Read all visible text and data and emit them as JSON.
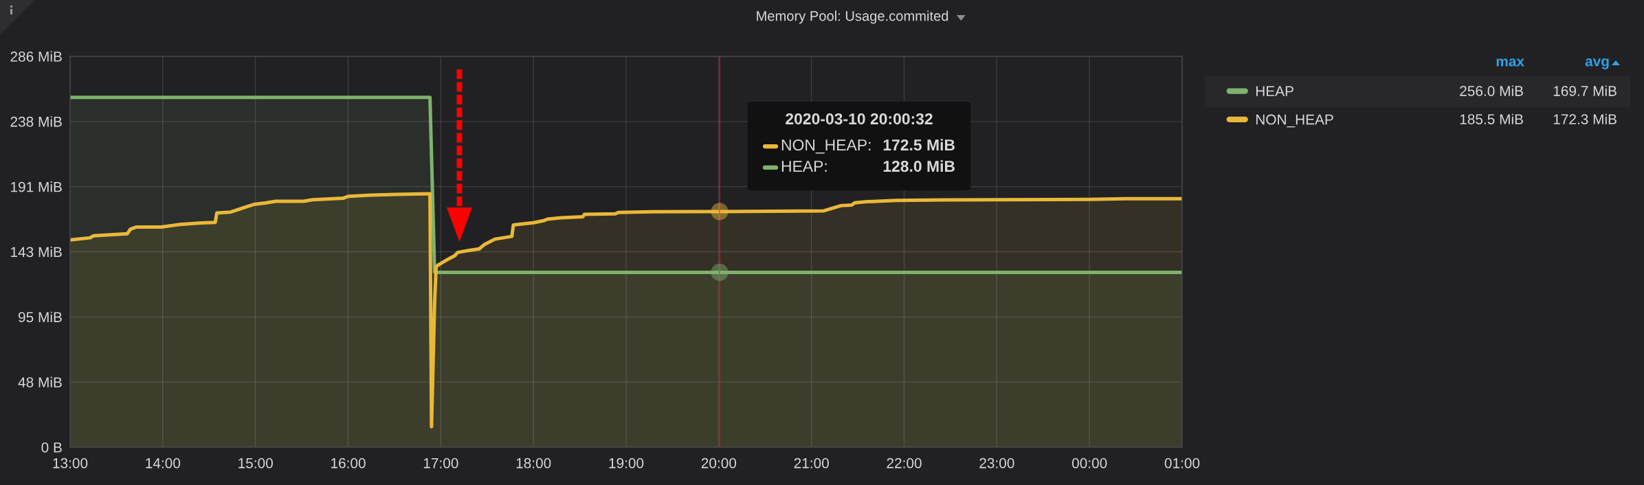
{
  "chart_data": {
    "type": "area",
    "title": "Memory Pool: Usage.commited",
    "series": [
      {
        "name": "HEAP",
        "color": "#7eb26d",
        "x": [
          "2020-03-10T13:00",
          "2020-03-10T16:53",
          "2020-03-10T16:56",
          "2020-03-10T20:00:32",
          "2020-03-11T01:00"
        ],
        "values": [
          256.0,
          256.0,
          128.0,
          128.0,
          128.0
        ]
      },
      {
        "name": "NON_HEAP",
        "color": "#eab839",
        "x": [
          "2020-03-10T13:00",
          "2020-03-10T13:13",
          "2020-03-10T13:15",
          "2020-03-10T13:37",
          "2020-03-10T13:39",
          "2020-03-10T13:43",
          "2020-03-10T13:59",
          "2020-03-10T14:11",
          "2020-03-10T14:25",
          "2020-03-10T14:34",
          "2020-03-10T14:35",
          "2020-03-10T14:44",
          "2020-03-10T14:54",
          "2020-03-10T14:59",
          "2020-03-10T15:07",
          "2020-03-10T15:13",
          "2020-03-10T15:31",
          "2020-03-10T15:37",
          "2020-03-10T15:57",
          "2020-03-10T16:00",
          "2020-03-10T16:15",
          "2020-03-10T16:31",
          "2020-03-10T16:53",
          "2020-03-10T16:54",
          "2020-03-10T16:56",
          "2020-03-10T16:57",
          "2020-03-10T16:59",
          "2020-03-10T17:05",
          "2020-03-10T17:09",
          "2020-03-10T17:11",
          "2020-03-10T17:17",
          "2020-03-10T17:25",
          "2020-03-10T17:28",
          "2020-03-10T17:35",
          "2020-03-10T17:46",
          "2020-03-10T17:47",
          "2020-03-10T18:00",
          "2020-03-10T18:07",
          "2020-03-10T18:09",
          "2020-03-10T18:18",
          "2020-03-10T18:32",
          "2020-03-10T18:33",
          "2020-03-10T18:53",
          "2020-03-10T18:55",
          "2020-03-10T19:17",
          "2020-03-10T20:00:32",
          "2020-03-10T21:08",
          "2020-03-10T21:19",
          "2020-03-10T21:26",
          "2020-03-10T21:28",
          "2020-03-10T21:36",
          "2020-03-10T21:55",
          "2020-03-10T22:26",
          "2020-03-11T00:00",
          "2020-03-11T00:23",
          "2020-03-11T01:00"
        ],
        "values": [
          151.7,
          153.3,
          154.7,
          156.2,
          159.6,
          161.2,
          161.2,
          163.0,
          164.2,
          164.6,
          171.5,
          172.1,
          175.9,
          177.7,
          178.9,
          180.0,
          180.0,
          181.1,
          182.3,
          183.6,
          184.5,
          185.0,
          185.5,
          15,
          106,
          132.2,
          133.8,
          137.8,
          140.2,
          142.6,
          143.8,
          145.2,
          148.2,
          152.3,
          154.3,
          162.7,
          164.3,
          165.9,
          166.9,
          167.9,
          168.7,
          170.4,
          170.8,
          171.8,
          172.4,
          172.5,
          173.0,
          176.8,
          177.2,
          178.9,
          179.7,
          180.6,
          181.0,
          181.4,
          181.9,
          181.9
        ]
      }
    ],
    "xlim": [
      "2020-03-10T13:00",
      "2020-03-11T01:00"
    ],
    "xticks": [
      {
        "value": "2020-03-10T13:00",
        "label": "13:00"
      },
      {
        "value": "2020-03-10T14:00",
        "label": "14:00"
      },
      {
        "value": "2020-03-10T15:00",
        "label": "15:00"
      },
      {
        "value": "2020-03-10T16:00",
        "label": "16:00"
      },
      {
        "value": "2020-03-10T17:00",
        "label": "17:00"
      },
      {
        "value": "2020-03-10T18:00",
        "label": "18:00"
      },
      {
        "value": "2020-03-10T19:00",
        "label": "19:00"
      },
      {
        "value": "2020-03-10T20:00",
        "label": "20:00"
      },
      {
        "value": "2020-03-10T21:00",
        "label": "21:00"
      },
      {
        "value": "2020-03-10T22:00",
        "label": "22:00"
      },
      {
        "value": "2020-03-10T23:00",
        "label": "23:00"
      },
      {
        "value": "2020-03-11T00:00",
        "label": "00:00"
      },
      {
        "value": "2020-03-11T01:00",
        "label": "01:00"
      }
    ],
    "ylim": [
      0,
      286.1
    ],
    "yticks": [
      {
        "value": 0,
        "label": "0 B"
      },
      {
        "value": 47.68,
        "label": "48 MiB"
      },
      {
        "value": 95.37,
        "label": "95 MiB"
      },
      {
        "value": 143.05,
        "label": "143 MiB"
      },
      {
        "value": 190.73,
        "label": "191 MiB"
      },
      {
        "value": 238.42,
        "label": "238 MiB"
      },
      {
        "value": 286.1,
        "label": "286 MiB"
      }
    ],
    "grid": true,
    "legend": "right",
    "ref_lines": [
      {
        "axis": "x",
        "value": "2020-03-10T20:00:32",
        "color": "#c4162a"
      }
    ],
    "annotations": [
      "max",
      "avg",
      "256.0 MiB",
      "169.7 MiB",
      "185.5 MiB",
      "172.3 MiB",
      "2020-03-10 20:00:32",
      "NON_HEAP:",
      "172.5 MiB",
      "HEAP:",
      "128.0 MiB"
    ]
  }
}
